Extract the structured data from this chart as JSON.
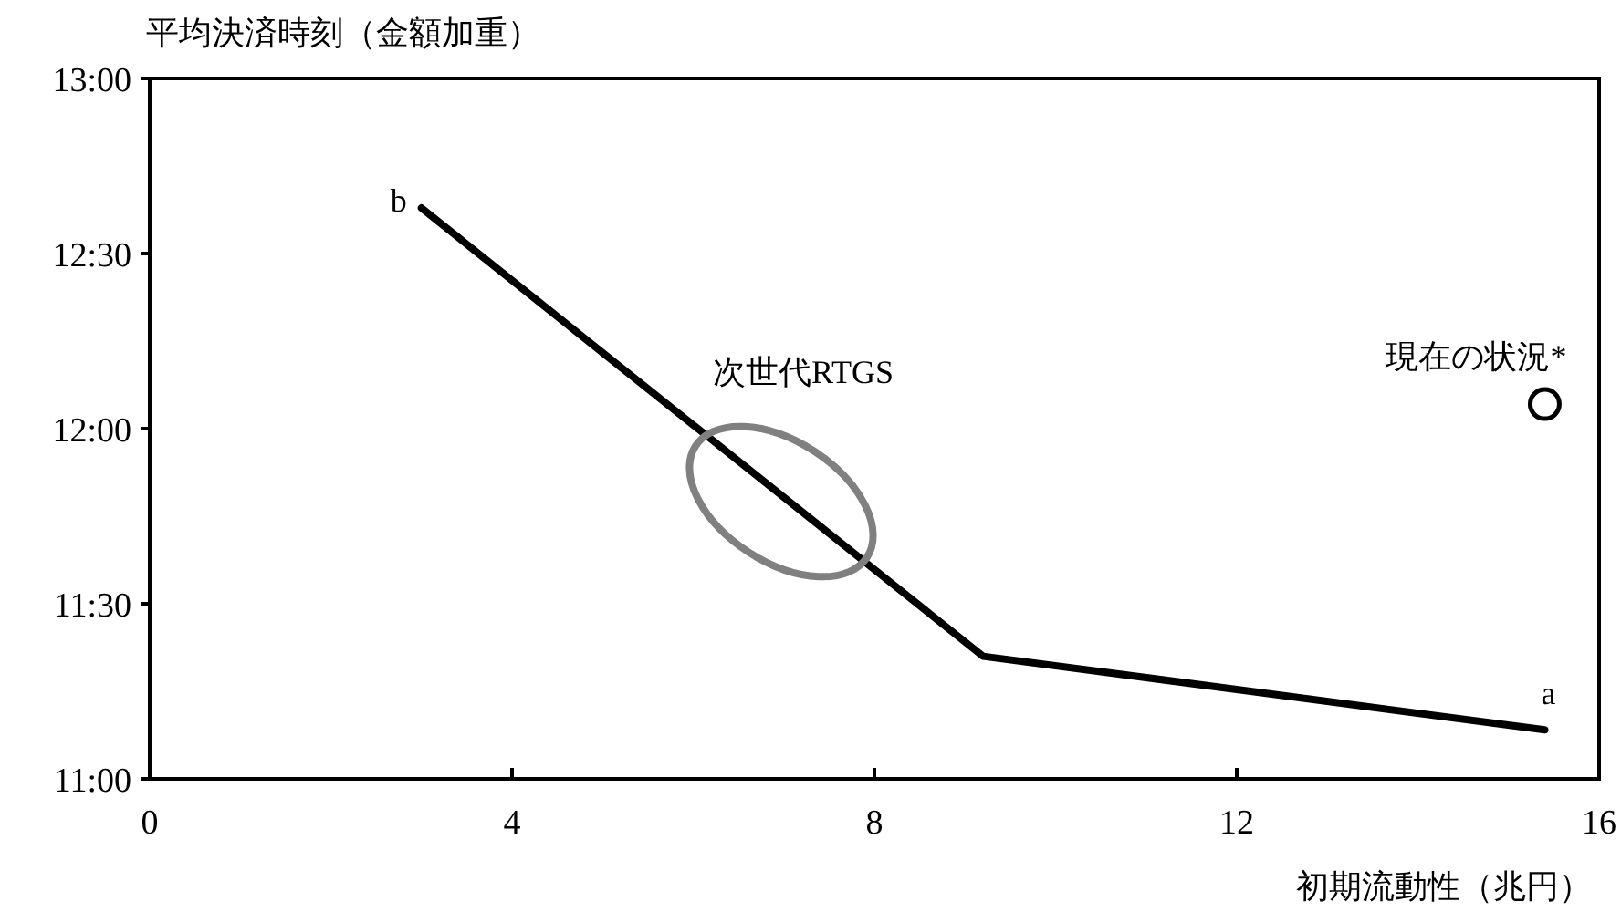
{
  "chart_data": {
    "type": "line",
    "xlabel": "初期流動性（兆円）",
    "ylabel": "平均決済時刻（金額加重）",
    "xlim": [
      0,
      16
    ],
    "xticks": [
      0,
      4,
      8,
      12,
      16
    ],
    "ylim": [
      11,
      13
    ],
    "yticks": [
      {
        "value": 11,
        "label": "11:00"
      },
      {
        "value": 11.5,
        "label": "11:30"
      },
      {
        "value": 12,
        "label": "12:00"
      },
      {
        "value": 12.5,
        "label": "12:30"
      },
      {
        "value": 13,
        "label": "13:00"
      }
    ],
    "series": [
      {
        "color": "#000000",
        "x": [
          3.0,
          9.2,
          15.4
        ],
        "values": [
          12.63,
          11.35,
          11.14
        ]
      },
      {
        "type": "scatter",
        "marker": "circle",
        "color": "#000000",
        "x": [
          15.4
        ],
        "values": [
          12.07
        ]
      }
    ],
    "annotations": [
      "b",
      "a",
      "現在の状況*",
      "次世代RTGS"
    ]
  }
}
